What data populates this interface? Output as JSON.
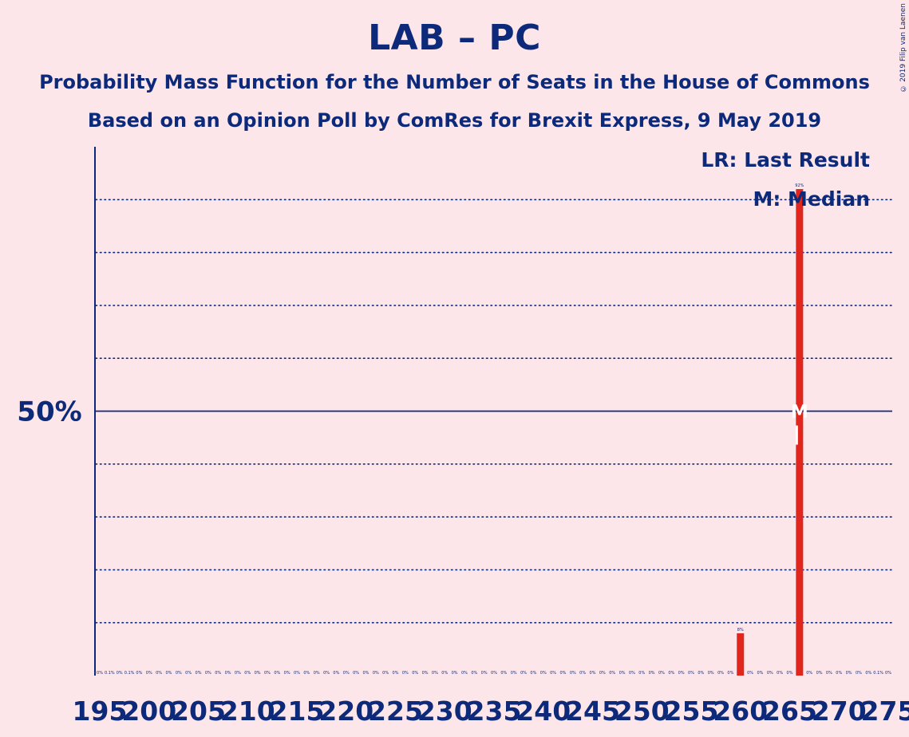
{
  "title": "LAB – PC",
  "subtitle1": "Probability Mass Function for the Number of Seats in the House of Commons",
  "subtitle2": "Based on an Opinion Poll by ComRes for Brexit Express, 9 May 2019",
  "copyright": "© 2019 Filip van Laenen",
  "colors": {
    "background": "#fde6e9",
    "axis": "#0d2a7a",
    "bar": "#e0261d",
    "marker": "#ffffff"
  },
  "chart_data": {
    "type": "bar",
    "xlabel": "",
    "ylabel": "",
    "ylim": [
      0,
      1
    ],
    "x_range": [
      195,
      275
    ],
    "x_ticks": [
      "195",
      "200",
      "205",
      "210",
      "215",
      "220",
      "225",
      "230",
      "235",
      "240",
      "245",
      "250",
      "255",
      "260",
      "265",
      "270",
      "275"
    ],
    "y_tick_label": "50%",
    "y_tick_value": 0.5,
    "gridlines": [
      0.1,
      0.2,
      0.3,
      0.4,
      0.6,
      0.7,
      0.8,
      0.9
    ],
    "legend": [
      "LR: Last Result",
      "M: Median"
    ],
    "legend_position": "top-right",
    "median_seat": 266,
    "median_marker": "M",
    "last_result_marker": "LR",
    "bars": [
      {
        "seat": 195,
        "value": 0,
        "label": "0%"
      },
      {
        "seat": 196,
        "value": 0.001,
        "label": "0.1%"
      },
      {
        "seat": 197,
        "value": 0,
        "label": "0%"
      },
      {
        "seat": 198,
        "value": 0.001,
        "label": "0.1%"
      },
      {
        "seat": 199,
        "value": 0,
        "label": "0%"
      },
      {
        "seat": 200,
        "value": 0,
        "label": "0%"
      },
      {
        "seat": 201,
        "value": 0,
        "label": "0%"
      },
      {
        "seat": 202,
        "value": 0,
        "label": "0%"
      },
      {
        "seat": 203,
        "value": 0,
        "label": "0%"
      },
      {
        "seat": 204,
        "value": 0,
        "label": "0%"
      },
      {
        "seat": 205,
        "value": 0,
        "label": "0%"
      },
      {
        "seat": 206,
        "value": 0,
        "label": "0%"
      },
      {
        "seat": 207,
        "value": 0,
        "label": "0%"
      },
      {
        "seat": 208,
        "value": 0,
        "label": "0%"
      },
      {
        "seat": 209,
        "value": 0,
        "label": "0%"
      },
      {
        "seat": 210,
        "value": 0,
        "label": "0%"
      },
      {
        "seat": 211,
        "value": 0,
        "label": "0%"
      },
      {
        "seat": 212,
        "value": 0,
        "label": "0%"
      },
      {
        "seat": 213,
        "value": 0,
        "label": "0%"
      },
      {
        "seat": 214,
        "value": 0,
        "label": "0%"
      },
      {
        "seat": 215,
        "value": 0,
        "label": "0%"
      },
      {
        "seat": 216,
        "value": 0,
        "label": "0%"
      },
      {
        "seat": 217,
        "value": 0,
        "label": "0%"
      },
      {
        "seat": 218,
        "value": 0,
        "label": "0%"
      },
      {
        "seat": 219,
        "value": 0,
        "label": "0%"
      },
      {
        "seat": 220,
        "value": 0,
        "label": "0%"
      },
      {
        "seat": 221,
        "value": 0,
        "label": "0%"
      },
      {
        "seat": 222,
        "value": 0,
        "label": "0%"
      },
      {
        "seat": 223,
        "value": 0,
        "label": "0%"
      },
      {
        "seat": 224,
        "value": 0,
        "label": "0%"
      },
      {
        "seat": 225,
        "value": 0,
        "label": "0%"
      },
      {
        "seat": 226,
        "value": 0,
        "label": "0%"
      },
      {
        "seat": 227,
        "value": 0,
        "label": "0%"
      },
      {
        "seat": 228,
        "value": 0,
        "label": "0%"
      },
      {
        "seat": 229,
        "value": 0,
        "label": "0%"
      },
      {
        "seat": 230,
        "value": 0,
        "label": "0%"
      },
      {
        "seat": 231,
        "value": 0,
        "label": "0%"
      },
      {
        "seat": 232,
        "value": 0,
        "label": "0%"
      },
      {
        "seat": 233,
        "value": 0,
        "label": "0%"
      },
      {
        "seat": 234,
        "value": 0,
        "label": "0%"
      },
      {
        "seat": 235,
        "value": 0,
        "label": "0%"
      },
      {
        "seat": 236,
        "value": 0,
        "label": "0%"
      },
      {
        "seat": 237,
        "value": 0,
        "label": "0%"
      },
      {
        "seat": 238,
        "value": 0,
        "label": "0%"
      },
      {
        "seat": 239,
        "value": 0,
        "label": "0%"
      },
      {
        "seat": 240,
        "value": 0,
        "label": "0%"
      },
      {
        "seat": 241,
        "value": 0,
        "label": "0%"
      },
      {
        "seat": 242,
        "value": 0,
        "label": "0%"
      },
      {
        "seat": 243,
        "value": 0,
        "label": "0%"
      },
      {
        "seat": 244,
        "value": 0,
        "label": "0%"
      },
      {
        "seat": 245,
        "value": 0,
        "label": "0%"
      },
      {
        "seat": 246,
        "value": 0,
        "label": "0%"
      },
      {
        "seat": 247,
        "value": 0,
        "label": "0%"
      },
      {
        "seat": 248,
        "value": 0,
        "label": "0%"
      },
      {
        "seat": 249,
        "value": 0,
        "label": "0%"
      },
      {
        "seat": 250,
        "value": 0,
        "label": "0%"
      },
      {
        "seat": 251,
        "value": 0,
        "label": "0%"
      },
      {
        "seat": 252,
        "value": 0,
        "label": "0%"
      },
      {
        "seat": 253,
        "value": 0,
        "label": "0%"
      },
      {
        "seat": 254,
        "value": 0,
        "label": "0%"
      },
      {
        "seat": 255,
        "value": 0,
        "label": "0%"
      },
      {
        "seat": 256,
        "value": 0,
        "label": "0%"
      },
      {
        "seat": 257,
        "value": 0,
        "label": "0%"
      },
      {
        "seat": 258,
        "value": 0,
        "label": "0%"
      },
      {
        "seat": 259,
        "value": 0,
        "label": "0%"
      },
      {
        "seat": 260,
        "value": 0.08,
        "label": "8%"
      },
      {
        "seat": 261,
        "value": 0,
        "label": "0%"
      },
      {
        "seat": 262,
        "value": 0,
        "label": "0%"
      },
      {
        "seat": 263,
        "value": 0,
        "label": "0%"
      },
      {
        "seat": 264,
        "value": 0,
        "label": "0%"
      },
      {
        "seat": 265,
        "value": 0,
        "label": "0%"
      },
      {
        "seat": 266,
        "value": 0.92,
        "label": "92%"
      },
      {
        "seat": 267,
        "value": 0,
        "label": "0%"
      },
      {
        "seat": 268,
        "value": 0,
        "label": "0%"
      },
      {
        "seat": 269,
        "value": 0,
        "label": "0%"
      },
      {
        "seat": 270,
        "value": 0,
        "label": "0%"
      },
      {
        "seat": 271,
        "value": 0,
        "label": "0%"
      },
      {
        "seat": 272,
        "value": 0,
        "label": "0%"
      },
      {
        "seat": 273,
        "value": 0,
        "label": "0%"
      },
      {
        "seat": 274,
        "value": 0.001,
        "label": "0.1%"
      },
      {
        "seat": 275,
        "value": 0,
        "label": "0%"
      }
    ]
  }
}
